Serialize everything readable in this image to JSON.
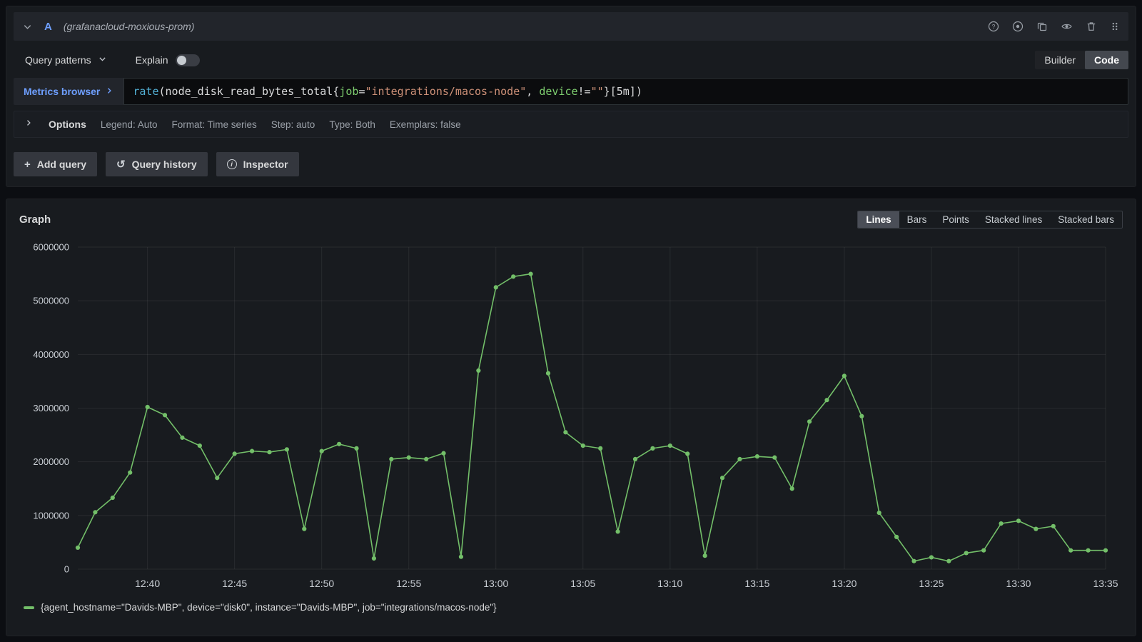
{
  "query_editor": {
    "ref_id": "A",
    "datasource_name": "(grafanacloud-moxious-prom)",
    "toolbar": {
      "query_patterns_label": "Query patterns",
      "explain_label": "Explain",
      "explain_on": false,
      "builder_label": "Builder",
      "code_label": "Code",
      "active_editor": "Code"
    },
    "metrics_browser_label": "Metrics browser",
    "query": {
      "function": "rate",
      "paren_open": "(",
      "metric": "node_disk_read_bytes_total",
      "brace_open": "{",
      "label_1": "job",
      "op_1": "=",
      "value_1": "\"integrations/macos-node\"",
      "separator": ", ",
      "label_2": "device",
      "op_2": "!=",
      "value_2": "\"\"",
      "brace_close": "}",
      "range": "[5m]",
      "paren_close": ")"
    },
    "options_row": {
      "title": "Options",
      "items": [
        "Legend: Auto",
        "Format: Time series",
        "Step: auto",
        "Type: Both",
        "Exemplars: false"
      ]
    },
    "action_buttons": {
      "add_query": "Add query",
      "query_history": "Query history",
      "inspector": "Inspector"
    }
  },
  "graph_panel": {
    "title": "Graph",
    "view_modes": [
      "Lines",
      "Bars",
      "Points",
      "Stacked lines",
      "Stacked bars"
    ],
    "selected_mode": "Lines",
    "legend_label": "{agent_hostname=\"Davids-MBP\", device=\"disk0\", instance=\"Davids-MBP\", job=\"integrations/macos-node\"}"
  },
  "glyphs": {
    "plus": "+",
    "history": "↺",
    "info": "i",
    "help": "?"
  },
  "chart_data": {
    "type": "line",
    "title": "Graph",
    "x_start": "12:36",
    "x_interval_minutes": 1,
    "x_tick_labels": [
      "12:40",
      "12:45",
      "12:50",
      "12:55",
      "13:00",
      "13:05",
      "13:10",
      "13:15",
      "13:20",
      "13:25",
      "13:30",
      "13:35"
    ],
    "x_tick_indices": [
      4,
      9,
      14,
      19,
      24,
      29,
      34,
      39,
      44,
      49,
      54,
      59
    ],
    "y_ticks": [
      0,
      1000000,
      2000000,
      3000000,
      4000000,
      5000000,
      6000000
    ],
    "ylim": [
      0,
      6000000
    ],
    "grid": true,
    "legend_position": "bottom-left",
    "series": [
      {
        "name": "{agent_hostname=\"Davids-MBP\", device=\"disk0\", instance=\"Davids-MBP\", job=\"integrations/macos-node\"}",
        "color": "#73bf69",
        "values": [
          400000,
          1060000,
          1330000,
          1800000,
          3020000,
          2870000,
          2450000,
          2300000,
          1700000,
          2150000,
          2200000,
          2180000,
          2230000,
          750000,
          2200000,
          2330000,
          2250000,
          200000,
          2050000,
          2080000,
          2050000,
          2160000,
          230000,
          3700000,
          5250000,
          5450000,
          5500000,
          3650000,
          2550000,
          2300000,
          2250000,
          700000,
          2050000,
          2250000,
          2300000,
          2150000,
          250000,
          1700000,
          2050000,
          2100000,
          2080000,
          1500000,
          2750000,
          3150000,
          3600000,
          2850000,
          1050000,
          600000,
          150000,
          220000,
          150000,
          300000,
          350000,
          850000,
          900000,
          750000,
          800000,
          350000,
          350000,
          350000
        ]
      }
    ]
  },
  "colors": {
    "page_bg": "#0c0e12",
    "panel_bg": "#181b1f",
    "header_bg": "#22252b",
    "input_bg": "#0b0c0e",
    "border": "#2c3235",
    "text": "#d8d9da",
    "text_muted": "#9aa0a8",
    "accent_blue": "#6e9fff",
    "series_green": "#73bf69",
    "code_function": "#53b1d6",
    "code_label": "#7ece6f",
    "code_string": "#ce9178",
    "button_bg": "#34373e",
    "active_tab_bg": "#44484f"
  }
}
